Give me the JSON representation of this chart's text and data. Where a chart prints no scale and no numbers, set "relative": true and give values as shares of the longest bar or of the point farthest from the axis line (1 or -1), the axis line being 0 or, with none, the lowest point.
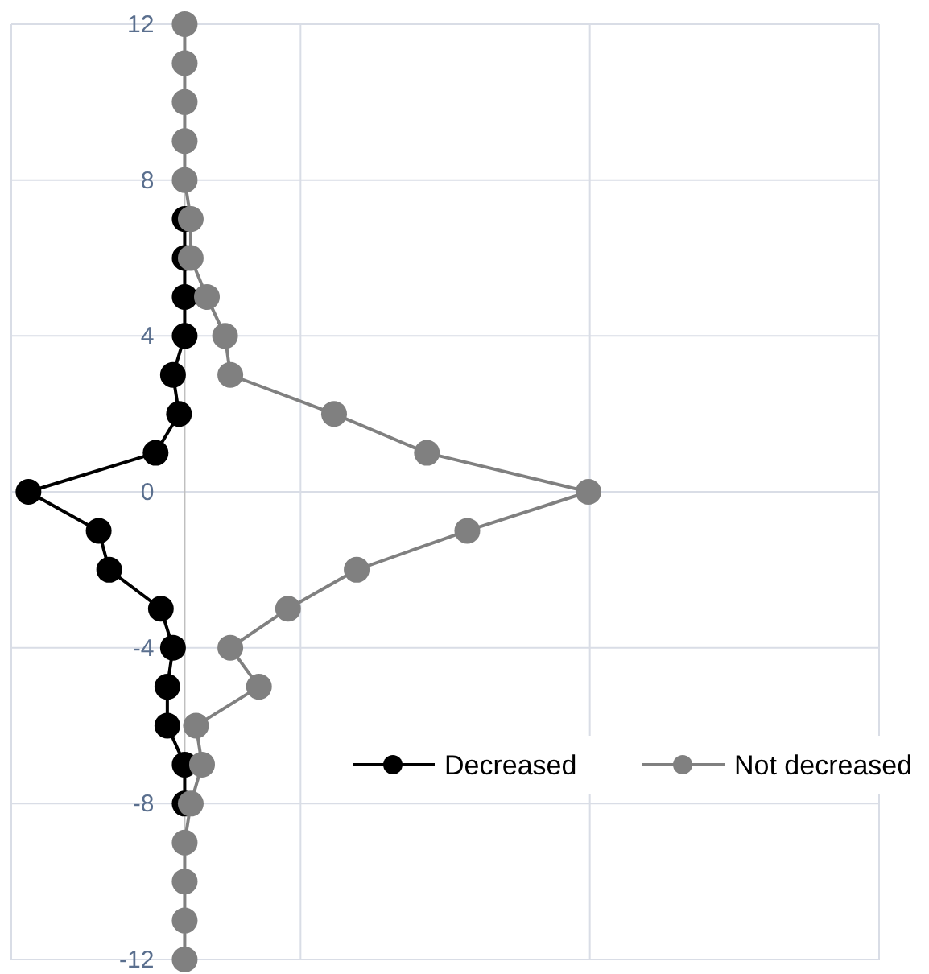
{
  "chart_data": {
    "type": "line",
    "orientation": "horizontal",
    "relative": true,
    "categories": [
      "12",
      null,
      null,
      null,
      "8",
      null,
      null,
      null,
      "4",
      null,
      null,
      null,
      "0",
      null,
      null,
      null,
      "-4",
      null,
      null,
      null,
      "-8",
      null,
      null,
      null,
      "-12"
    ],
    "grid": true,
    "legend": "bottom right",
    "marker": "circle",
    "line_style": "solid",
    "series": [
      {
        "name": "Decreased",
        "color": "#000000",
        "values": [
          null,
          null,
          null,
          null,
          null,
          0,
          0,
          0,
          0,
          -0.029,
          -0.014,
          -0.072,
          -0.387,
          -0.213,
          -0.187,
          -0.059,
          -0.029,
          -0.043,
          -0.043,
          0,
          0,
          null,
          null,
          null,
          null
        ]
      },
      {
        "name": "Not decreased",
        "color": "#808080",
        "values": [
          0,
          0,
          0,
          0,
          0,
          0.015,
          0.015,
          0.055,
          0.1,
          0.113,
          0.37,
          0.6,
          1,
          0.7,
          0.426,
          0.256,
          0.113,
          0.184,
          0.028,
          0.043,
          0.015,
          0,
          0,
          0,
          0
        ]
      }
    ]
  }
}
